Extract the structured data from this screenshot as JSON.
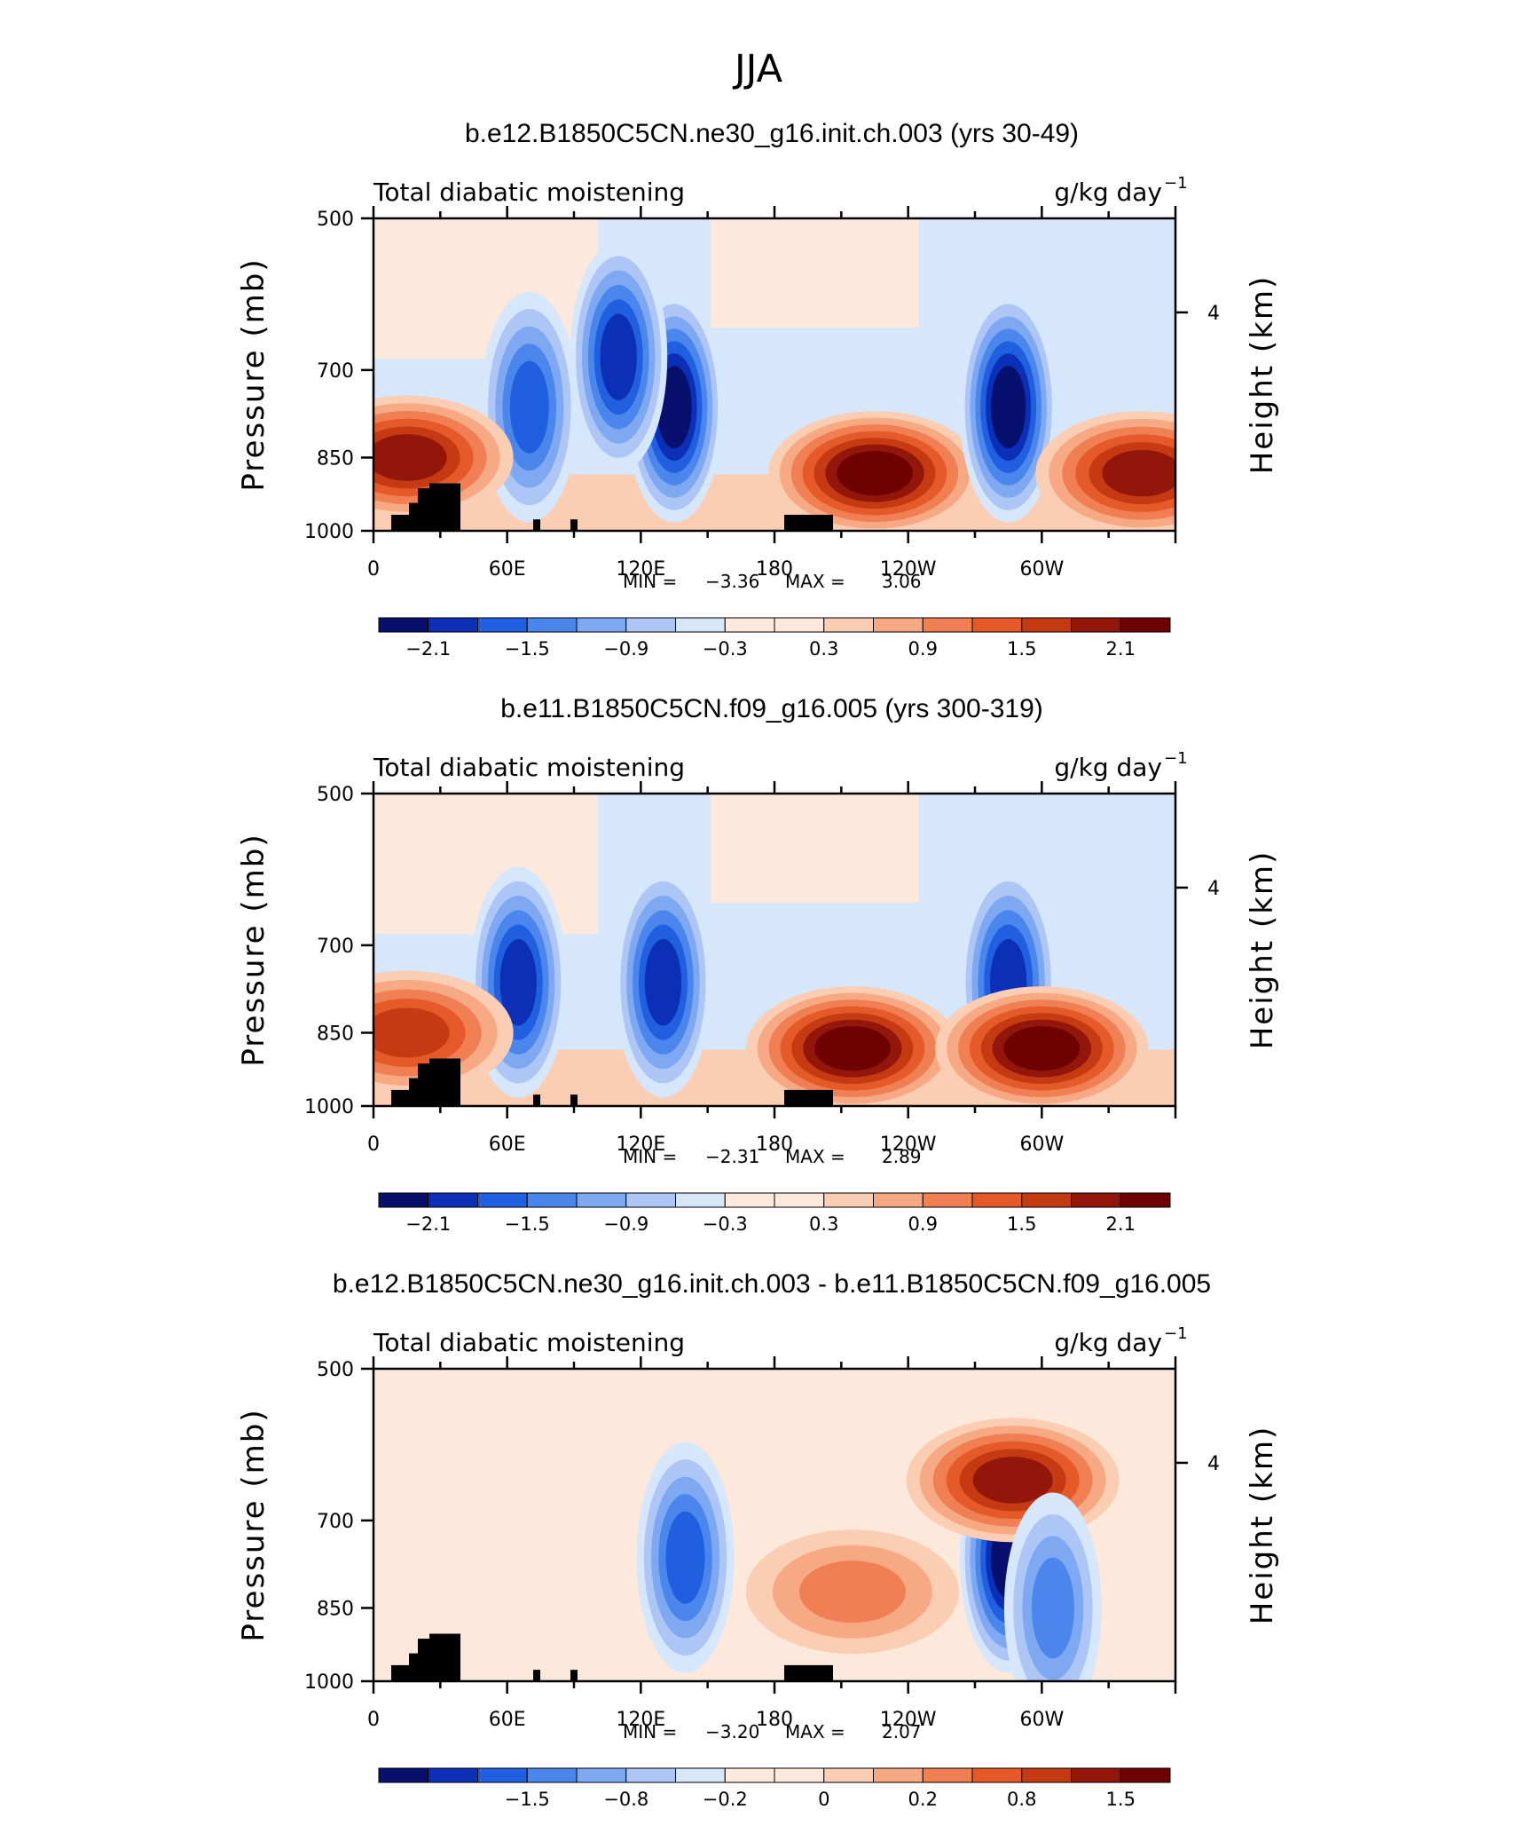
{
  "figure_title": "JJA",
  "chart_data": [
    {
      "type": "heatmap",
      "title": "b.e12.B1850C5CN.ne30_g16.init.ch.003 (yrs 30-49)",
      "left_label": "Total diabatic moistening",
      "units": "g/kg day",
      "units_exponent": "−1",
      "ylabel": "Pressure (mb)",
      "ylabel_right": "Height (km)",
      "ylim": [
        1000,
        500
      ],
      "yticks": [
        "500",
        "700",
        "850",
        "1000"
      ],
      "yticks_right": [
        "4"
      ],
      "xticks": [
        "0",
        "60E",
        "120E",
        "180",
        "120W",
        "60W"
      ],
      "min_label": "MIN =",
      "min_value": "−3.36",
      "max_label": "MAX =",
      "max_value": "3.06",
      "colorbar_labels": [
        "−2.1",
        "−1.5",
        "−0.9",
        "−0.3",
        "0.3",
        "0.9",
        "1.5",
        "2.1"
      ],
      "features": [
        {
          "lon": 135,
          "p": 760,
          "value": -3.3
        },
        {
          "lon": 110,
          "p": 680,
          "value": -2.0
        },
        {
          "lon": 70,
          "p": 760,
          "value": -1.6
        },
        {
          "lon": 225,
          "p": 880,
          "value": 2.4
        },
        {
          "lon": 285,
          "p": 760,
          "value": -2.8
        },
        {
          "lon": 345,
          "p": 880,
          "value": 2.2
        },
        {
          "lon": 15,
          "p": 850,
          "value": 1.9
        }
      ]
    },
    {
      "type": "heatmap",
      "title": "b.e11.B1850C5CN.f09_g16.005 (yrs 300-319)",
      "left_label": "Total diabatic moistening",
      "units": "g/kg day",
      "units_exponent": "−1",
      "ylabel": "Pressure (mb)",
      "ylabel_right": "Height (km)",
      "ylim": [
        1000,
        500
      ],
      "yticks": [
        "500",
        "700",
        "850",
        "1000"
      ],
      "yticks_right": [
        "4"
      ],
      "xticks": [
        "0",
        "60E",
        "120E",
        "180",
        "120W",
        "60W"
      ],
      "min_label": "MIN =",
      "min_value": "−2.31",
      "max_label": "MAX =",
      "max_value": "2.89",
      "colorbar_labels": [
        "−2.1",
        "−1.5",
        "−0.9",
        "−0.3",
        "0.3",
        "0.9",
        "1.5",
        "2.1"
      ],
      "features": [
        {
          "lon": 130,
          "p": 760,
          "value": -2.0
        },
        {
          "lon": 65,
          "p": 760,
          "value": -2.1
        },
        {
          "lon": 215,
          "p": 880,
          "value": 2.3
        },
        {
          "lon": 285,
          "p": 760,
          "value": -2.2
        },
        {
          "lon": 300,
          "p": 880,
          "value": 2.8
        },
        {
          "lon": 15,
          "p": 850,
          "value": 1.6
        }
      ]
    },
    {
      "type": "heatmap",
      "title": "b.e12.B1850C5CN.ne30_g16.init.ch.003 - b.e11.B1850C5CN.f09_g16.005",
      "left_label": "Total diabatic moistening",
      "units": "g/kg day",
      "units_exponent": "−1",
      "ylabel": "Pressure (mb)",
      "ylabel_right": "Height (km)",
      "ylim": [
        1000,
        500
      ],
      "yticks": [
        "500",
        "700",
        "850",
        "1000"
      ],
      "yticks_right": [
        "4"
      ],
      "xticks": [
        "0",
        "60E",
        "120E",
        "180",
        "120W",
        "60W"
      ],
      "min_label": "MIN =",
      "min_value": "−3.20",
      "max_label": "MAX =",
      "max_value": "2.07",
      "colorbar_labels": [
        "−1.5",
        "−0.8",
        "−0.2",
        "0",
        "0.2",
        "0.8",
        "1.5"
      ],
      "features": [
        {
          "lon": 140,
          "p": 760,
          "value": -1.5
        },
        {
          "lon": 285,
          "p": 760,
          "value": -3.0
        },
        {
          "lon": 287,
          "p": 640,
          "value": 1.8
        },
        {
          "lon": 215,
          "p": 820,
          "value": 0.9
        },
        {
          "lon": 305,
          "p": 850,
          "value": -1.2
        }
      ]
    }
  ]
}
